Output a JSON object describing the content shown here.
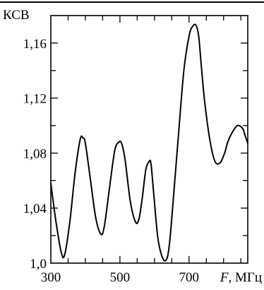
{
  "chart_data": {
    "type": "line",
    "title": "",
    "ylabel": "КСВ",
    "xlabel_var": "F",
    "xlabel_sep": ", ",
    "xlabel_unit": "МГц",
    "xlim": [
      300,
      870
    ],
    "ylim": [
      1.0,
      1.18
    ],
    "x_ticks": [
      300,
      500,
      700
    ],
    "x_tick_labels": [
      "300",
      "500",
      "700"
    ],
    "y_ticks": [
      1.0,
      1.04,
      1.08,
      1.12,
      1.16
    ],
    "y_tick_labels": [
      "1,0",
      "1,04",
      "1,08",
      "1,12",
      "1,16"
    ],
    "x_minor_step": 50,
    "y_minor_step": 0.02,
    "grid": false,
    "line_color": "#000000",
    "series": [
      {
        "x": [
          300,
          315,
          330,
          340,
          355,
          370,
          385,
          393,
          400,
          415,
          430,
          445,
          455,
          470,
          485,
          497,
          505,
          515,
          530,
          545,
          555,
          565,
          575,
          585,
          590,
          598,
          610,
          625,
          637,
          645,
          655,
          670,
          685,
          700,
          710,
          720,
          728,
          735,
          745,
          760,
          775,
          790,
          803,
          812,
          825,
          840,
          855,
          862,
          870
        ],
        "y": [
          1.058,
          1.03,
          1.008,
          1.006,
          1.03,
          1.065,
          1.09,
          1.091,
          1.087,
          1.06,
          1.033,
          1.021,
          1.027,
          1.055,
          1.082,
          1.088,
          1.087,
          1.075,
          1.045,
          1.03,
          1.032,
          1.048,
          1.068,
          1.074,
          1.072,
          1.05,
          1.018,
          1.003,
          1.004,
          1.018,
          1.048,
          1.095,
          1.14,
          1.165,
          1.172,
          1.173,
          1.165,
          1.145,
          1.118,
          1.09,
          1.074,
          1.073,
          1.08,
          1.088,
          1.095,
          1.1,
          1.098,
          1.093,
          1.087
        ]
      }
    ]
  }
}
